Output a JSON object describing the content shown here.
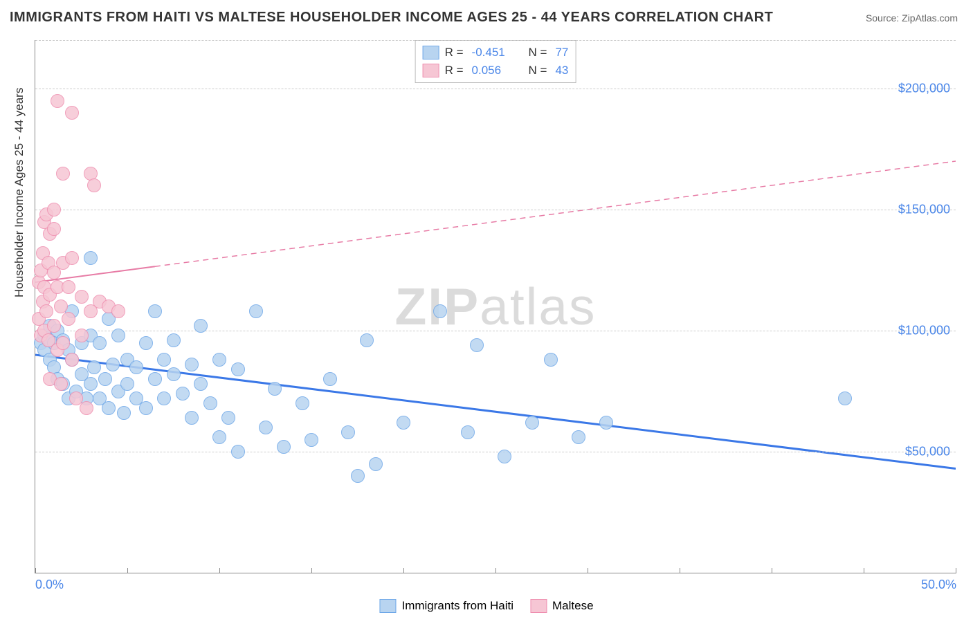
{
  "title": "IMMIGRANTS FROM HAITI VS MALTESE HOUSEHOLDER INCOME AGES 25 - 44 YEARS CORRELATION CHART",
  "source_prefix": "Source: ",
  "source_link": "ZipAtlas.com",
  "yaxis_title": "Householder Income Ages 25 - 44 years",
  "watermark_bold": "ZIP",
  "watermark_rest": "atlas",
  "chart": {
    "type": "scatter",
    "xlim": [
      0,
      50
    ],
    "ylim": [
      0,
      220000
    ],
    "x_ticks": [
      0,
      5,
      10,
      15,
      20,
      25,
      30,
      35,
      40,
      45,
      50
    ],
    "x_tick_labels": {
      "0": "0.0%",
      "50": "50.0%"
    },
    "y_gridlines": [
      50000,
      100000,
      150000,
      200000
    ],
    "y_tick_labels": {
      "50000": "$50,000",
      "100000": "$100,000",
      "150000": "$150,000",
      "200000": "$200,000"
    },
    "grid_color": "#cccccc",
    "background_color": "#ffffff",
    "axis_color": "#888888",
    "tick_label_color": "#4a86e8",
    "marker_radius": 9,
    "marker_border_width": 1.5,
    "series": [
      {
        "name": "Immigrants from Haiti",
        "fill": "#b8d4f0",
        "stroke": "#6fa8e8",
        "trend_color": "#3b78e7",
        "trend_width": 3,
        "trend_dash_after_x": 50,
        "R": "-0.451",
        "N": "77",
        "trend": {
          "x1": 0,
          "y1": 90000,
          "x2": 50,
          "y2": 43000
        },
        "points": [
          [
            0.3,
            95000
          ],
          [
            0.5,
            98000
          ],
          [
            0.5,
            92000
          ],
          [
            0.8,
            96000
          ],
          [
            0.8,
            88000
          ],
          [
            0.8,
            102000
          ],
          [
            1.0,
            85000
          ],
          [
            1.0,
            95000
          ],
          [
            1.2,
            100000
          ],
          [
            1.2,
            80000
          ],
          [
            1.5,
            78000
          ],
          [
            1.5,
            96000
          ],
          [
            1.8,
            92000
          ],
          [
            1.8,
            72000
          ],
          [
            2.0,
            88000
          ],
          [
            2.0,
            108000
          ],
          [
            2.2,
            75000
          ],
          [
            2.5,
            95000
          ],
          [
            2.5,
            82000
          ],
          [
            2.8,
            72000
          ],
          [
            3.0,
            98000
          ],
          [
            3.0,
            78000
          ],
          [
            3.0,
            130000
          ],
          [
            3.2,
            85000
          ],
          [
            3.5,
            72000
          ],
          [
            3.5,
            95000
          ],
          [
            3.8,
            80000
          ],
          [
            4.0,
            68000
          ],
          [
            4.0,
            105000
          ],
          [
            4.2,
            86000
          ],
          [
            4.5,
            75000
          ],
          [
            4.5,
            98000
          ],
          [
            4.8,
            66000
          ],
          [
            5.0,
            88000
          ],
          [
            5.0,
            78000
          ],
          [
            5.5,
            85000
          ],
          [
            5.5,
            72000
          ],
          [
            6.0,
            95000
          ],
          [
            6.0,
            68000
          ],
          [
            6.5,
            80000
          ],
          [
            6.5,
            108000
          ],
          [
            7.0,
            88000
          ],
          [
            7.0,
            72000
          ],
          [
            7.5,
            82000
          ],
          [
            7.5,
            96000
          ],
          [
            8.0,
            74000
          ],
          [
            8.5,
            86000
          ],
          [
            8.5,
            64000
          ],
          [
            9.0,
            78000
          ],
          [
            9.0,
            102000
          ],
          [
            9.5,
            70000
          ],
          [
            10.0,
            88000
          ],
          [
            10.0,
            56000
          ],
          [
            10.5,
            64000
          ],
          [
            11.0,
            84000
          ],
          [
            11.0,
            50000
          ],
          [
            12.0,
            108000
          ],
          [
            12.5,
            60000
          ],
          [
            13.0,
            76000
          ],
          [
            13.5,
            52000
          ],
          [
            14.5,
            70000
          ],
          [
            15.0,
            55000
          ],
          [
            16.0,
            80000
          ],
          [
            17.0,
            58000
          ],
          [
            17.5,
            40000
          ],
          [
            18.0,
            96000
          ],
          [
            18.5,
            45000
          ],
          [
            20.0,
            62000
          ],
          [
            22.0,
            108000
          ],
          [
            23.5,
            58000
          ],
          [
            24.0,
            94000
          ],
          [
            25.5,
            48000
          ],
          [
            27.0,
            62000
          ],
          [
            28.0,
            88000
          ],
          [
            29.5,
            56000
          ],
          [
            31.0,
            62000
          ],
          [
            44.0,
            72000
          ]
        ]
      },
      {
        "name": "Maltese",
        "fill": "#f6c6d4",
        "stroke": "#ef8fb0",
        "trend_color": "#e77ba5",
        "trend_width": 2,
        "trend_dash_after_x": 6.5,
        "R": "0.056",
        "N": "43",
        "trend": {
          "x1": 0,
          "y1": 120000,
          "x2": 50,
          "y2": 170000
        },
        "points": [
          [
            0.2,
            105000
          ],
          [
            0.2,
            120000
          ],
          [
            0.3,
            98000
          ],
          [
            0.3,
            125000
          ],
          [
            0.4,
            112000
          ],
          [
            0.4,
            132000
          ],
          [
            0.5,
            100000
          ],
          [
            0.5,
            118000
          ],
          [
            0.5,
            145000
          ],
          [
            0.6,
            108000
          ],
          [
            0.6,
            148000
          ],
          [
            0.7,
            96000
          ],
          [
            0.7,
            128000
          ],
          [
            0.8,
            115000
          ],
          [
            0.8,
            140000
          ],
          [
            0.8,
            80000
          ],
          [
            1.0,
            102000
          ],
          [
            1.0,
            124000
          ],
          [
            1.0,
            150000
          ],
          [
            1.0,
            142000
          ],
          [
            1.2,
            92000
          ],
          [
            1.2,
            118000
          ],
          [
            1.2,
            195000
          ],
          [
            1.4,
            110000
          ],
          [
            1.4,
            78000
          ],
          [
            1.5,
            128000
          ],
          [
            1.5,
            95000
          ],
          [
            1.5,
            165000
          ],
          [
            1.8,
            105000
          ],
          [
            1.8,
            118000
          ],
          [
            2.0,
            88000
          ],
          [
            2.0,
            130000
          ],
          [
            2.0,
            190000
          ],
          [
            2.2,
            72000
          ],
          [
            2.5,
            114000
          ],
          [
            2.5,
            98000
          ],
          [
            2.8,
            68000
          ],
          [
            3.0,
            108000
          ],
          [
            3.0,
            165000
          ],
          [
            3.2,
            160000
          ],
          [
            3.5,
            112000
          ],
          [
            4.0,
            110000
          ],
          [
            4.5,
            108000
          ]
        ]
      }
    ]
  },
  "legend_bottom": [
    {
      "label": "Immigrants from Haiti",
      "fill": "#b8d4f0",
      "stroke": "#6fa8e8"
    },
    {
      "label": "Maltese",
      "fill": "#f6c6d4",
      "stroke": "#ef8fb0"
    }
  ]
}
